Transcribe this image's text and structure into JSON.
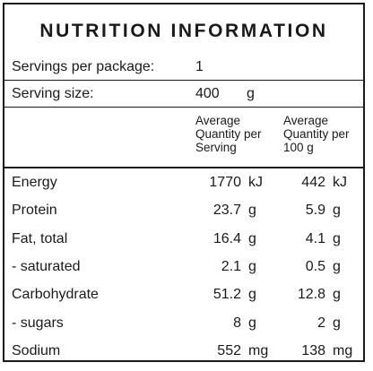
{
  "title": "NUTRITION INFORMATION",
  "servings": {
    "label": "Servings per package:",
    "value": "1"
  },
  "serving_size": {
    "label": "Serving size:",
    "value": "400",
    "unit": "g"
  },
  "headers": {
    "per_serving": [
      "Average",
      "Quantity per",
      "Serving"
    ],
    "per_100g": [
      "Average",
      "Quantity per",
      "100 g"
    ]
  },
  "rows": [
    {
      "name": "Energy",
      "serving": "1770",
      "serving_unit": "kJ",
      "per100": "442",
      "per100_unit": "kJ"
    },
    {
      "name": "Protein",
      "serving": "23.7",
      "serving_unit": "g",
      "per100": "5.9",
      "per100_unit": "g"
    },
    {
      "name": "Fat, total",
      "serving": "16.4",
      "serving_unit": "g",
      "per100": "4.1",
      "per100_unit": "g"
    },
    {
      "name": "- saturated",
      "serving": "2.1",
      "serving_unit": "g",
      "per100": "0.5",
      "per100_unit": "g"
    },
    {
      "name": "Carbohydrate",
      "serving": "51.2",
      "serving_unit": "g",
      "per100": "12.8",
      "per100_unit": "g"
    },
    {
      "name": "- sugars",
      "serving": "8",
      "serving_unit": "g",
      "per100": "2",
      "per100_unit": "g"
    },
    {
      "name": "Sodium",
      "serving": "552",
      "serving_unit": "mg",
      "per100": "138",
      "per100_unit": "mg"
    }
  ]
}
